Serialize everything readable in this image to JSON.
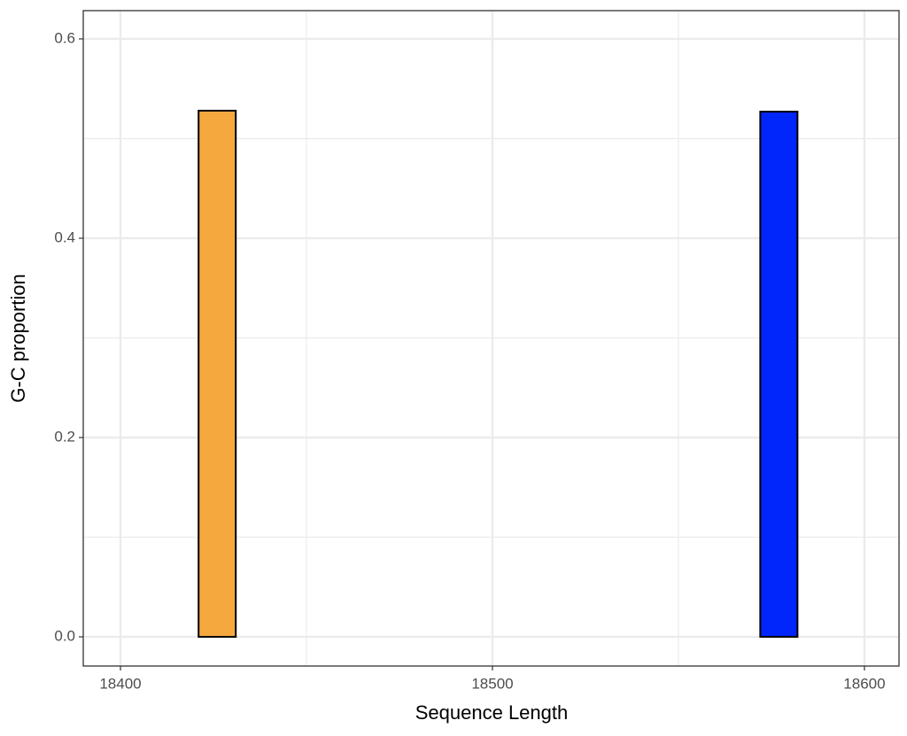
{
  "chart_data": {
    "type": "bar",
    "xlabel": "Sequence Length",
    "ylabel": "G-C proportion",
    "x": [
      18426,
      18577
    ],
    "values": [
      0.528,
      0.527
    ],
    "colors": [
      "#f4a83e",
      "#0026fb"
    ],
    "bar_width": 10,
    "xlim": [
      18390,
      18609.3
    ],
    "ylim": [
      -0.0293,
      0.6284
    ],
    "xticks": [
      18400,
      18500,
      18600
    ],
    "yticks": [
      {
        "value": 0,
        "label": "0.0"
      },
      0.2,
      0.4,
      0.6
    ],
    "x_minor_grid": [
      18450,
      18550
    ],
    "y_minor_grid": [
      0.1,
      0.3,
      0.5
    ],
    "grid": true
  }
}
